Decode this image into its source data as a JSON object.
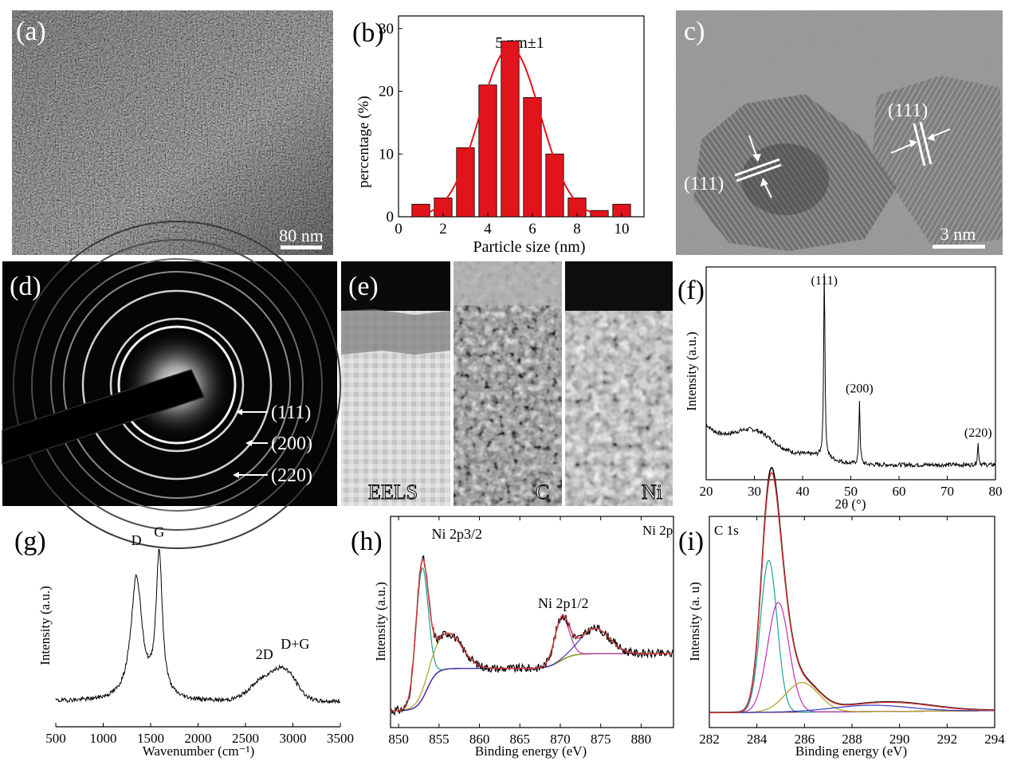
{
  "figure": {
    "panel_letters": [
      "(a)",
      "(b)",
      "c)",
      "(d)",
      "(e)",
      "(f)",
      "(g)",
      "(h)",
      "(i)"
    ]
  },
  "colors": {
    "bar_fill": "#e2141b",
    "fit_curve": "#e2141b",
    "micrograph_dark": "#3a3a3a",
    "micrograph_light": "#c9c9c9",
    "diffraction_bg": "#050505",
    "xps_raw": "#000000",
    "xps_envelope": "#d63a3a",
    "xps_peak1": "#1aa29a",
    "xps_peak2": "#b0a020",
    "xps_peak3": "#3a3ac0",
    "xps_peak4": "#c030b0",
    "xps_background": "#8b1a1a"
  },
  "panel_a": {
    "letter": "(a)",
    "scale_bar": "80 nm"
  },
  "panel_c": {
    "letter": "c)",
    "scale_bar": "3 nm",
    "plane_labels": [
      "(111)",
      "(111)"
    ]
  },
  "panel_d": {
    "letter": "(d)",
    "ring_labels": [
      "(111)",
      "(200)",
      "(220)"
    ]
  },
  "panel_e": {
    "letter": "(e)",
    "map_labels": [
      "EELS",
      "C",
      "Ni"
    ]
  },
  "chart_data": [
    {
      "id": "b",
      "type": "bar",
      "letter": "(b)",
      "annotation": "5 nm±1",
      "xlabel": "Particle size (nm)",
      "ylabel": "percentage (%)",
      "xlim": [
        0,
        11
      ],
      "ylim": [
        0,
        32
      ],
      "xticks": [
        0,
        2,
        4,
        6,
        8,
        10
      ],
      "yticks": [
        0,
        10,
        20,
        30
      ],
      "x": [
        1,
        2,
        3,
        4,
        5,
        6,
        7,
        8,
        9,
        10
      ],
      "values": [
        2,
        3,
        11,
        21,
        28,
        19,
        10,
        3,
        1,
        2
      ],
      "fit": {
        "type": "gaussian",
        "center": 5,
        "amplitude": 27,
        "sigma": 1.35
      }
    },
    {
      "id": "f",
      "type": "line",
      "letter": "(f)",
      "xlabel": "2θ (°)",
      "ylabel": "Intensity (a.u.)",
      "xlim": [
        20,
        80
      ],
      "xticks": [
        20,
        30,
        40,
        50,
        60,
        70,
        80
      ],
      "peaks": [
        {
          "label": "(111)",
          "x": 44.5,
          "height": 0.95
        },
        {
          "label": "(200)",
          "x": 51.8,
          "height": 0.3
        },
        {
          "label": "(220)",
          "x": 76.4,
          "height": 0.1
        }
      ]
    },
    {
      "id": "g",
      "type": "line",
      "letter": "(g)",
      "xlabel": "Wavenumber (cm⁻¹)",
      "ylabel": "Intensity (a.u.)",
      "xlim": [
        500,
        3500
      ],
      "xticks": [
        500,
        1000,
        1500,
        2000,
        2500,
        3000,
        3500
      ],
      "bands": [
        {
          "label": "D",
          "x": 1350
        },
        {
          "label": "G",
          "x": 1590
        },
        {
          "label": "2D",
          "x": 2700
        },
        {
          "label": "D+G",
          "x": 2940
        }
      ]
    },
    {
      "id": "h",
      "type": "line",
      "letter": "(h)",
      "title": "Ni 2p",
      "xlabel": "Binding energy (eV)",
      "ylabel": "Intensity (a.u.)",
      "xlim": [
        849,
        884
      ],
      "xticks": [
        850,
        855,
        860,
        865,
        870,
        875,
        880
      ],
      "peak_labels": [
        {
          "label": "Ni 2p3/2",
          "x": 852.9
        },
        {
          "label": "Ni 2p1/2",
          "x": 870.2
        }
      ]
    },
    {
      "id": "i",
      "type": "line",
      "letter": "(i)",
      "title": "C 1s",
      "xlabel": "Binding energy (eV)",
      "ylabel": "Intensity (a. u)",
      "xlim": [
        282,
        294
      ],
      "xticks": [
        282,
        284,
        286,
        288,
        290,
        292,
        294
      ],
      "components": [
        {
          "x": 284.5
        },
        {
          "x": 284.9
        },
        {
          "x": 285.9
        },
        {
          "x": 288.8
        }
      ]
    }
  ]
}
